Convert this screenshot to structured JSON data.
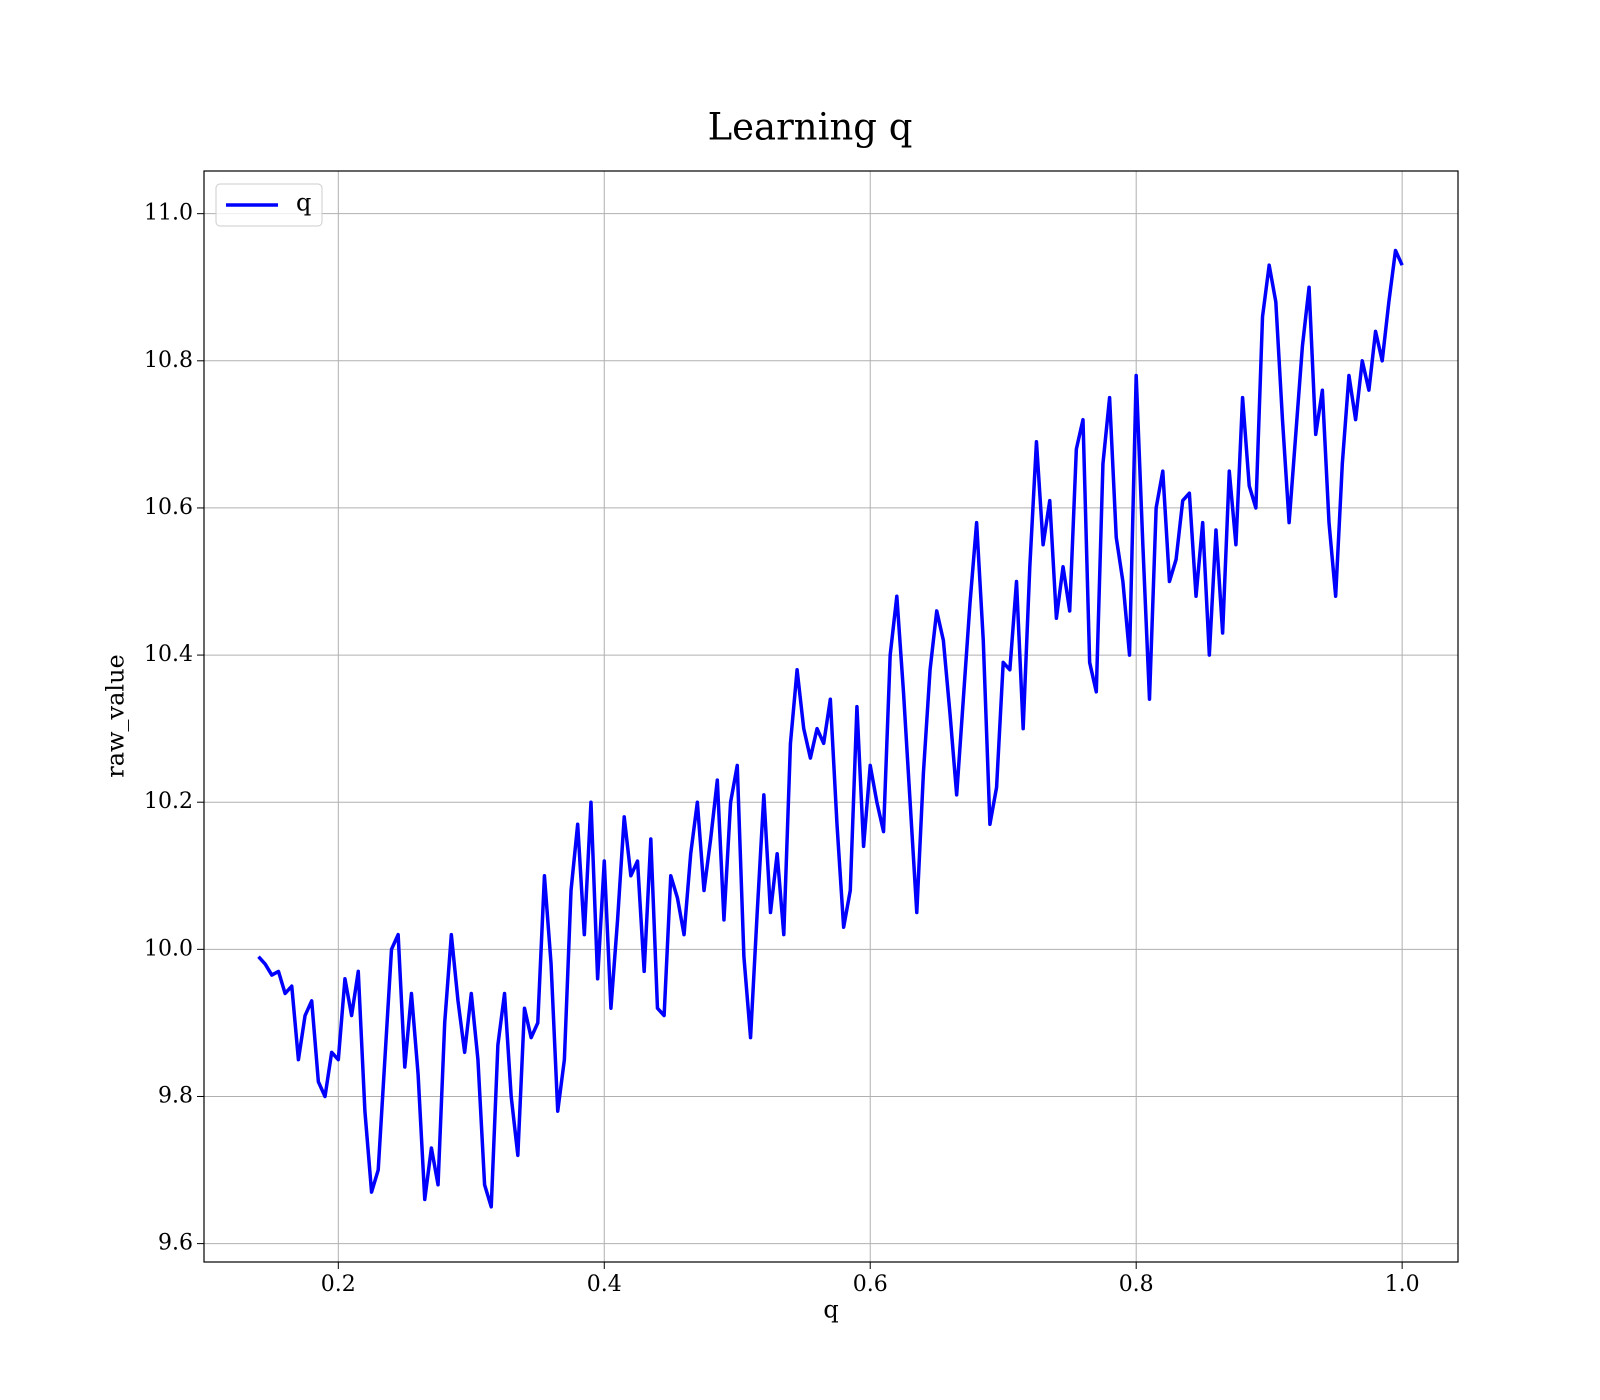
{
  "chart_data": {
    "type": "line",
    "title": "Learning q",
    "xlabel": "q",
    "ylabel": "raw_value",
    "x": [
      0.14,
      0.145,
      0.15,
      0.155,
      0.16,
      0.165,
      0.17,
      0.175,
      0.18,
      0.185,
      0.19,
      0.195,
      0.2,
      0.205,
      0.21,
      0.215,
      0.22,
      0.225,
      0.23,
      0.235,
      0.24,
      0.245,
      0.25,
      0.255,
      0.26,
      0.265,
      0.27,
      0.275,
      0.28,
      0.285,
      0.29,
      0.295,
      0.3,
      0.305,
      0.31,
      0.315,
      0.32,
      0.325,
      0.33,
      0.335,
      0.34,
      0.345,
      0.35,
      0.355,
      0.36,
      0.365,
      0.37,
      0.375,
      0.38,
      0.385,
      0.39,
      0.395,
      0.4,
      0.405,
      0.41,
      0.415,
      0.42,
      0.425,
      0.43,
      0.435,
      0.44,
      0.445,
      0.45,
      0.455,
      0.46,
      0.465,
      0.47,
      0.475,
      0.48,
      0.485,
      0.49,
      0.495,
      0.5,
      0.505,
      0.51,
      0.515,
      0.52,
      0.525,
      0.53,
      0.535,
      0.54,
      0.545,
      0.55,
      0.555,
      0.56,
      0.565,
      0.57,
      0.575,
      0.58,
      0.585,
      0.59,
      0.595,
      0.6,
      0.605,
      0.61,
      0.615,
      0.62,
      0.625,
      0.63,
      0.635,
      0.64,
      0.645,
      0.65,
      0.655,
      0.66,
      0.665,
      0.67,
      0.675,
      0.68,
      0.685,
      0.69,
      0.695,
      0.7,
      0.705,
      0.71,
      0.715,
      0.72,
      0.725,
      0.73,
      0.735,
      0.74,
      0.745,
      0.75,
      0.755,
      0.76,
      0.765,
      0.77,
      0.775,
      0.78,
      0.785,
      0.79,
      0.795,
      0.8,
      0.805,
      0.81,
      0.815,
      0.82,
      0.825,
      0.83,
      0.835,
      0.84,
      0.845,
      0.85,
      0.855,
      0.86,
      0.865,
      0.87,
      0.875,
      0.88,
      0.885,
      0.89,
      0.895,
      0.9,
      0.905,
      0.91,
      0.915,
      0.92,
      0.925,
      0.93,
      0.935,
      0.94,
      0.945,
      0.95,
      0.955,
      0.96,
      0.965,
      0.97,
      0.975,
      0.98,
      0.985,
      0.99,
      0.995,
      1.0
    ],
    "series": [
      {
        "name": "q",
        "color": "#0000ff",
        "values": [
          9.99,
          9.98,
          9.965,
          9.97,
          9.94,
          9.95,
          9.85,
          9.91,
          9.93,
          9.82,
          9.8,
          9.86,
          9.85,
          9.96,
          9.91,
          9.97,
          9.78,
          9.67,
          9.7,
          9.85,
          10.0,
          10.02,
          9.84,
          9.94,
          9.83,
          9.66,
          9.73,
          9.68,
          9.9,
          10.02,
          9.93,
          9.86,
          9.94,
          9.85,
          9.68,
          9.65,
          9.87,
          9.94,
          9.8,
          9.72,
          9.92,
          9.88,
          9.9,
          10.1,
          9.98,
          9.78,
          9.85,
          10.08,
          10.17,
          10.02,
          10.2,
          9.96,
          10.12,
          9.92,
          10.04,
          10.18,
          10.1,
          10.12,
          9.97,
          10.15,
          9.92,
          9.91,
          10.1,
          10.07,
          10.02,
          10.13,
          10.2,
          10.08,
          10.15,
          10.23,
          10.04,
          10.2,
          10.25,
          9.99,
          9.88,
          10.05,
          10.21,
          10.05,
          10.13,
          10.02,
          10.28,
          10.38,
          10.3,
          10.26,
          10.3,
          10.28,
          10.34,
          10.17,
          10.03,
          10.08,
          10.33,
          10.14,
          10.25,
          10.2,
          10.16,
          10.4,
          10.48,
          10.35,
          10.2,
          10.05,
          10.24,
          10.38,
          10.46,
          10.42,
          10.32,
          10.21,
          10.34,
          10.47,
          10.58,
          10.42,
          10.17,
          10.22,
          10.39,
          10.38,
          10.5,
          10.3,
          10.52,
          10.69,
          10.55,
          10.61,
          10.45,
          10.52,
          10.46,
          10.68,
          10.72,
          10.39,
          10.35,
          10.66,
          10.75,
          10.56,
          10.5,
          10.4,
          10.78,
          10.55,
          10.34,
          10.6,
          10.65,
          10.5,
          10.53,
          10.61,
          10.62,
          10.48,
          10.58,
          10.4,
          10.57,
          10.43,
          10.65,
          10.55,
          10.75,
          10.63,
          10.6,
          10.86,
          10.93,
          10.88,
          10.72,
          10.58,
          10.7,
          10.82,
          10.9,
          10.7,
          10.76,
          10.58,
          10.48,
          10.66,
          10.78,
          10.72,
          10.8,
          10.76,
          10.84,
          10.8,
          10.88,
          10.95,
          10.93
        ]
      }
    ],
    "xlim": [
      0.099,
      1.042
    ],
    "xticks": [
      0.2,
      0.4,
      0.6,
      0.8,
      {
        "value": 1,
        "label": "1.0"
      }
    ],
    "ylim": [
      9.575,
      11.058
    ],
    "yticks": [
      9.6,
      9.8,
      {
        "value": 10,
        "label": "10.0"
      },
      10.2,
      10.4,
      10.6,
      10.8,
      {
        "value": 11,
        "label": "11.0"
      }
    ],
    "grid": true,
    "legend": "upper left"
  }
}
